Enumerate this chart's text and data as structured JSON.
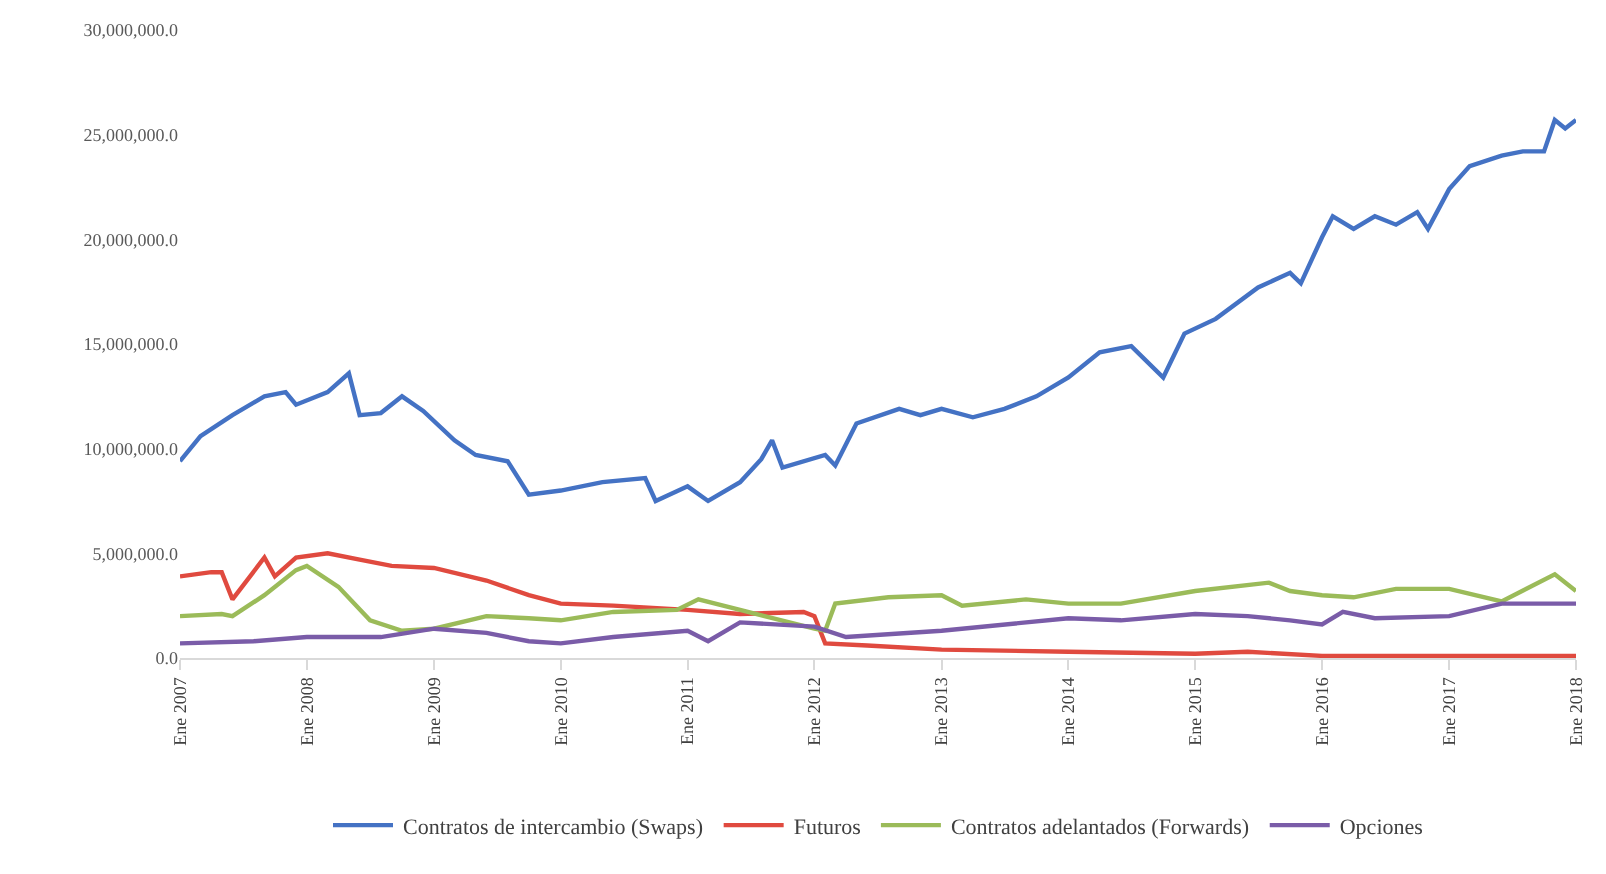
{
  "chart_data": {
    "type": "line",
    "legend": "bottom",
    "grid": false,
    "ylim": [
      0,
      30000000
    ],
    "yticks": [
      {
        "value": 0,
        "label": "0.0"
      },
      {
        "value": 5000000,
        "label": "5,000,000.0"
      },
      {
        "value": 10000000,
        "label": "10,000,000.0"
      },
      {
        "value": 15000000,
        "label": "15,000,000.0"
      },
      {
        "value": 20000000,
        "label": "20,000,000.0"
      },
      {
        "value": 25000000,
        "label": "25,000,000.0"
      },
      {
        "value": 30000000,
        "label": "30,000,000.0"
      }
    ],
    "xlim": [
      "2007-01",
      "2018-01"
    ],
    "xticks": [
      {
        "value": "2007-01",
        "label": "Ene 2007"
      },
      {
        "value": "2008-01",
        "label": "Ene 2008"
      },
      {
        "value": "2009-01",
        "label": "Ene 2009"
      },
      {
        "value": "2010-01",
        "label": "Ene 2010"
      },
      {
        "value": "2011-01",
        "label": "Ene 2011"
      },
      {
        "value": "2012-01",
        "label": "Ene 2012"
      },
      {
        "value": "2013-01",
        "label": "Ene 2013"
      },
      {
        "value": "2014-01",
        "label": "Ene 2014"
      },
      {
        "value": "2015-01",
        "label": "Ene 2015"
      },
      {
        "value": "2016-01",
        "label": "Ene 2016"
      },
      {
        "value": "2017-01",
        "label": "Ene 2017"
      },
      {
        "value": "2018-01",
        "label": "Ene 2018"
      }
    ],
    "series": [
      {
        "name": "Contratos de intercambio (Swaps)",
        "color": "#4472c4",
        "x": [
          "2007-01",
          "2007-03",
          "2007-06",
          "2007-09",
          "2007-11",
          "2007-12",
          "2008-03",
          "2008-05",
          "2008-06",
          "2008-08",
          "2008-10",
          "2008-12",
          "2009-03",
          "2009-05",
          "2009-08",
          "2009-10",
          "2010-01",
          "2010-05",
          "2010-09",
          "2010-10",
          "2011-01",
          "2011-03",
          "2011-06",
          "2011-08",
          "2011-09",
          "2011-10",
          "2012-02",
          "2012-03",
          "2012-05",
          "2012-09",
          "2012-11",
          "2013-01",
          "2013-04",
          "2013-07",
          "2013-10",
          "2014-01",
          "2014-04",
          "2014-07",
          "2014-10",
          "2014-12",
          "2015-03",
          "2015-07",
          "2015-10",
          "2015-11",
          "2016-01",
          "2016-02",
          "2016-04",
          "2016-06",
          "2016-08",
          "2016-10",
          "2016-11",
          "2017-01",
          "2017-03",
          "2017-06",
          "2017-08",
          "2017-10",
          "2017-11",
          "2017-12",
          "2018-01"
        ],
        "values": [
          9400000,
          10600000,
          11600000,
          12500000,
          12700000,
          12100000,
          12700000,
          13600000,
          11600000,
          11700000,
          12500000,
          11800000,
          10400000,
          9700000,
          9400000,
          7800000,
          8000000,
          8400000,
          8600000,
          7500000,
          8200000,
          7500000,
          8400000,
          9500000,
          10400000,
          9100000,
          9700000,
          9200000,
          11200000,
          11900000,
          11600000,
          11900000,
          11500000,
          11900000,
          12500000,
          13400000,
          14600000,
          14900000,
          13400000,
          15500000,
          16200000,
          17700000,
          18400000,
          17900000,
          20100000,
          21100000,
          20500000,
          21100000,
          20700000,
          21300000,
          20500000,
          22400000,
          23500000,
          24000000,
          24200000,
          24200000,
          25700000,
          25300000,
          25700000
        ]
      },
      {
        "name": "Futuros",
        "color": "#e04a3f",
        "x": [
          "2007-01",
          "2007-04",
          "2007-05",
          "2007-06",
          "2007-09",
          "2007-10",
          "2007-12",
          "2008-03",
          "2008-06",
          "2008-09",
          "2009-01",
          "2009-06",
          "2009-10",
          "2010-01",
          "2010-06",
          "2011-01",
          "2011-06",
          "2011-12",
          "2012-01",
          "2012-02",
          "2012-06",
          "2013-01",
          "2014-01",
          "2015-01",
          "2015-06",
          "2016-01",
          "2017-01",
          "2018-01"
        ],
        "values": [
          3900000,
          4100000,
          4100000,
          2800000,
          4800000,
          3900000,
          4800000,
          5000000,
          4700000,
          4400000,
          4300000,
          3700000,
          3000000,
          2600000,
          2500000,
          2300000,
          2100000,
          2200000,
          2000000,
          700000,
          600000,
          400000,
          300000,
          200000,
          300000,
          100000,
          100000,
          100000
        ]
      },
      {
        "name": "Contratos adelantados (Forwards)",
        "color": "#9bbb59",
        "x": [
          "2007-01",
          "2007-05",
          "2007-06",
          "2007-09",
          "2007-12",
          "2008-01",
          "2008-04",
          "2008-07",
          "2008-10",
          "2009-01",
          "2009-06",
          "2009-10",
          "2010-01",
          "2010-06",
          "2010-12",
          "2011-02",
          "2011-06",
          "2012-01",
          "2012-02",
          "2012-03",
          "2012-08",
          "2013-01",
          "2013-03",
          "2013-09",
          "2014-01",
          "2014-06",
          "2015-01",
          "2015-08",
          "2015-10",
          "2016-01",
          "2016-04",
          "2016-08",
          "2017-01",
          "2017-06",
          "2017-11",
          "2018-01"
        ],
        "values": [
          2000000,
          2100000,
          2000000,
          3000000,
          4200000,
          4400000,
          3400000,
          1800000,
          1300000,
          1400000,
          2000000,
          1900000,
          1800000,
          2200000,
          2300000,
          2800000,
          2300000,
          1400000,
          1300000,
          2600000,
          2900000,
          3000000,
          2500000,
          2800000,
          2600000,
          2600000,
          3200000,
          3600000,
          3200000,
          3000000,
          2900000,
          3300000,
          3300000,
          2700000,
          4000000,
          3200000
        ]
      },
      {
        "name": "Opciones",
        "color": "#7a5ca8",
        "x": [
          "2007-01",
          "2007-08",
          "2008-01",
          "2008-08",
          "2009-01",
          "2009-06",
          "2009-10",
          "2010-01",
          "2010-06",
          "2011-01",
          "2011-03",
          "2011-06",
          "2012-01",
          "2012-04",
          "2013-01",
          "2014-01",
          "2014-06",
          "2015-01",
          "2015-06",
          "2015-10",
          "2016-01",
          "2016-03",
          "2016-06",
          "2017-01",
          "2017-06",
          "2018-01"
        ],
        "values": [
          700000,
          800000,
          1000000,
          1000000,
          1400000,
          1200000,
          800000,
          700000,
          1000000,
          1300000,
          800000,
          1700000,
          1500000,
          1000000,
          1300000,
          1900000,
          1800000,
          2100000,
          2000000,
          1800000,
          1600000,
          2200000,
          1900000,
          2000000,
          2600000,
          2600000
        ]
      }
    ]
  }
}
